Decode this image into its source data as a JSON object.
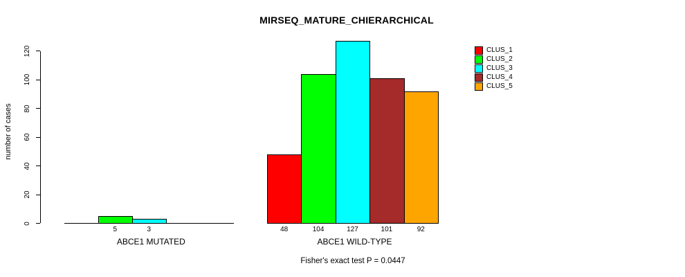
{
  "chart_data": {
    "type": "bar",
    "title": "MIRSEQ_MATURE_CHIERARCHICAL",
    "ylabel": "number of cases",
    "xlabel": "",
    "categories": [
      "ABCE1 MUTATED",
      "ABCE1 WILD-TYPE"
    ],
    "series": [
      {
        "name": "CLUS_1",
        "color": "#FF0000",
        "values": [
          0,
          48
        ]
      },
      {
        "name": "CLUS_2",
        "color": "#00FF00",
        "values": [
          5,
          104
        ]
      },
      {
        "name": "CLUS_3",
        "color": "#00FFFF",
        "values": [
          3,
          127
        ]
      },
      {
        "name": "CLUS_4",
        "color": "#A52A2A",
        "values": [
          0,
          101
        ]
      },
      {
        "name": "CLUS_5",
        "color": "#FFA500",
        "values": [
          0,
          92
        ]
      }
    ],
    "yticks": [
      0,
      20,
      40,
      60,
      80,
      100,
      120
    ],
    "ylim": [
      0,
      127
    ],
    "grid": false,
    "legend_position": "right-outside",
    "bar_value_labels_shown_for_nonzero_only": true,
    "annotation": "Fisher's exact test P = 0.0447"
  }
}
